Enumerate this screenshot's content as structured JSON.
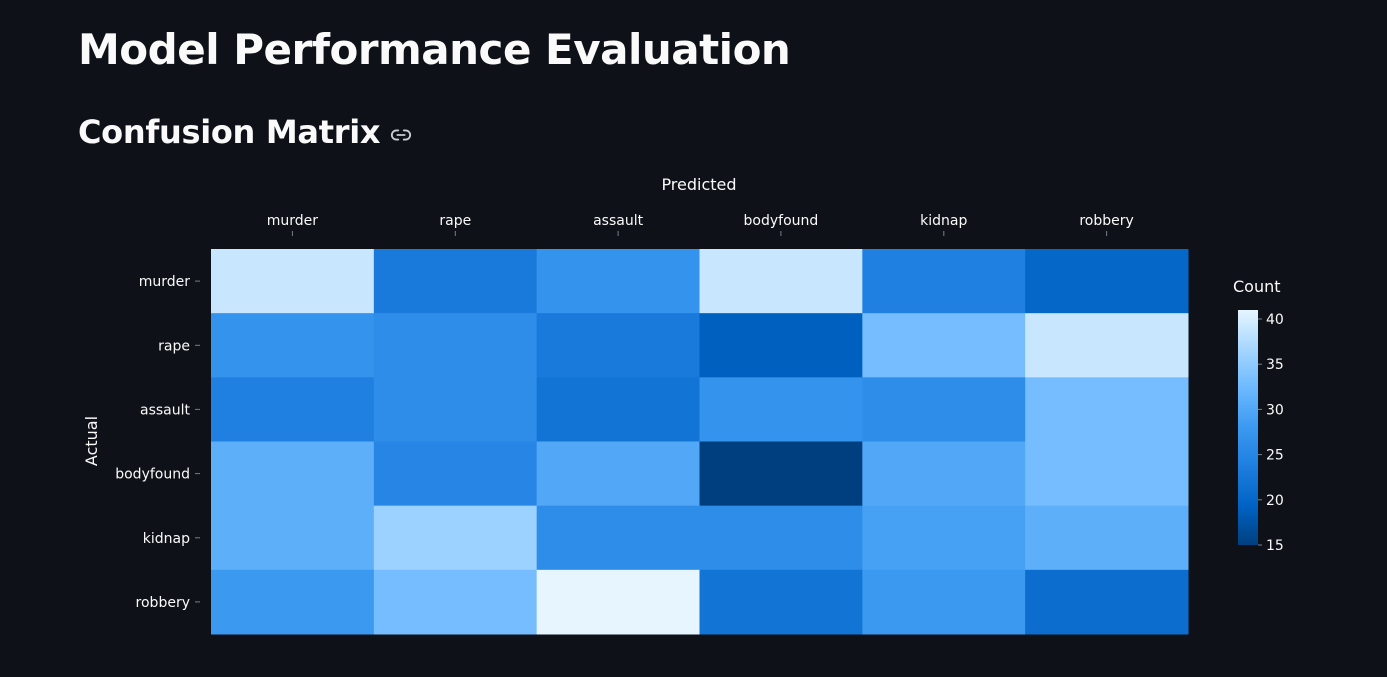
{
  "page": {
    "title": "Model Performance Evaluation",
    "section_title": "Confusion Matrix",
    "link_icon": "link-icon"
  },
  "chart_data": {
    "type": "heatmap",
    "title": "",
    "xlabel": "Predicted",
    "ylabel": "Actual",
    "x_axis_position": "top",
    "categories_x": [
      "murder",
      "rape",
      "assault",
      "bodyfound",
      "kidnap",
      "robbery"
    ],
    "categories_y": [
      "murder",
      "rape",
      "assault",
      "bodyfound",
      "kidnap",
      "robbery"
    ],
    "values": [
      [
        39,
        23,
        27,
        39,
        24,
        20
      ],
      [
        27,
        26,
        23,
        19,
        33,
        39
      ],
      [
        24,
        26,
        22,
        27,
        26,
        33
      ],
      [
        31,
        25,
        30,
        15,
        30,
        33
      ],
      [
        31,
        36,
        26,
        26,
        29,
        31
      ],
      [
        28,
        33,
        41,
        22,
        28,
        21
      ]
    ],
    "colorbar": {
      "title": "Count",
      "min": 15,
      "max": 41,
      "ticks": [
        15,
        20,
        25,
        30,
        35,
        40
      ],
      "colors": [
        "#003f7f",
        "#0063c4",
        "#1e7ee0",
        "#3b99f0",
        "#6cb9ff",
        "#a5d6ff",
        "#e6f5ff"
      ]
    },
    "grid": false,
    "legend_placement": "right"
  }
}
